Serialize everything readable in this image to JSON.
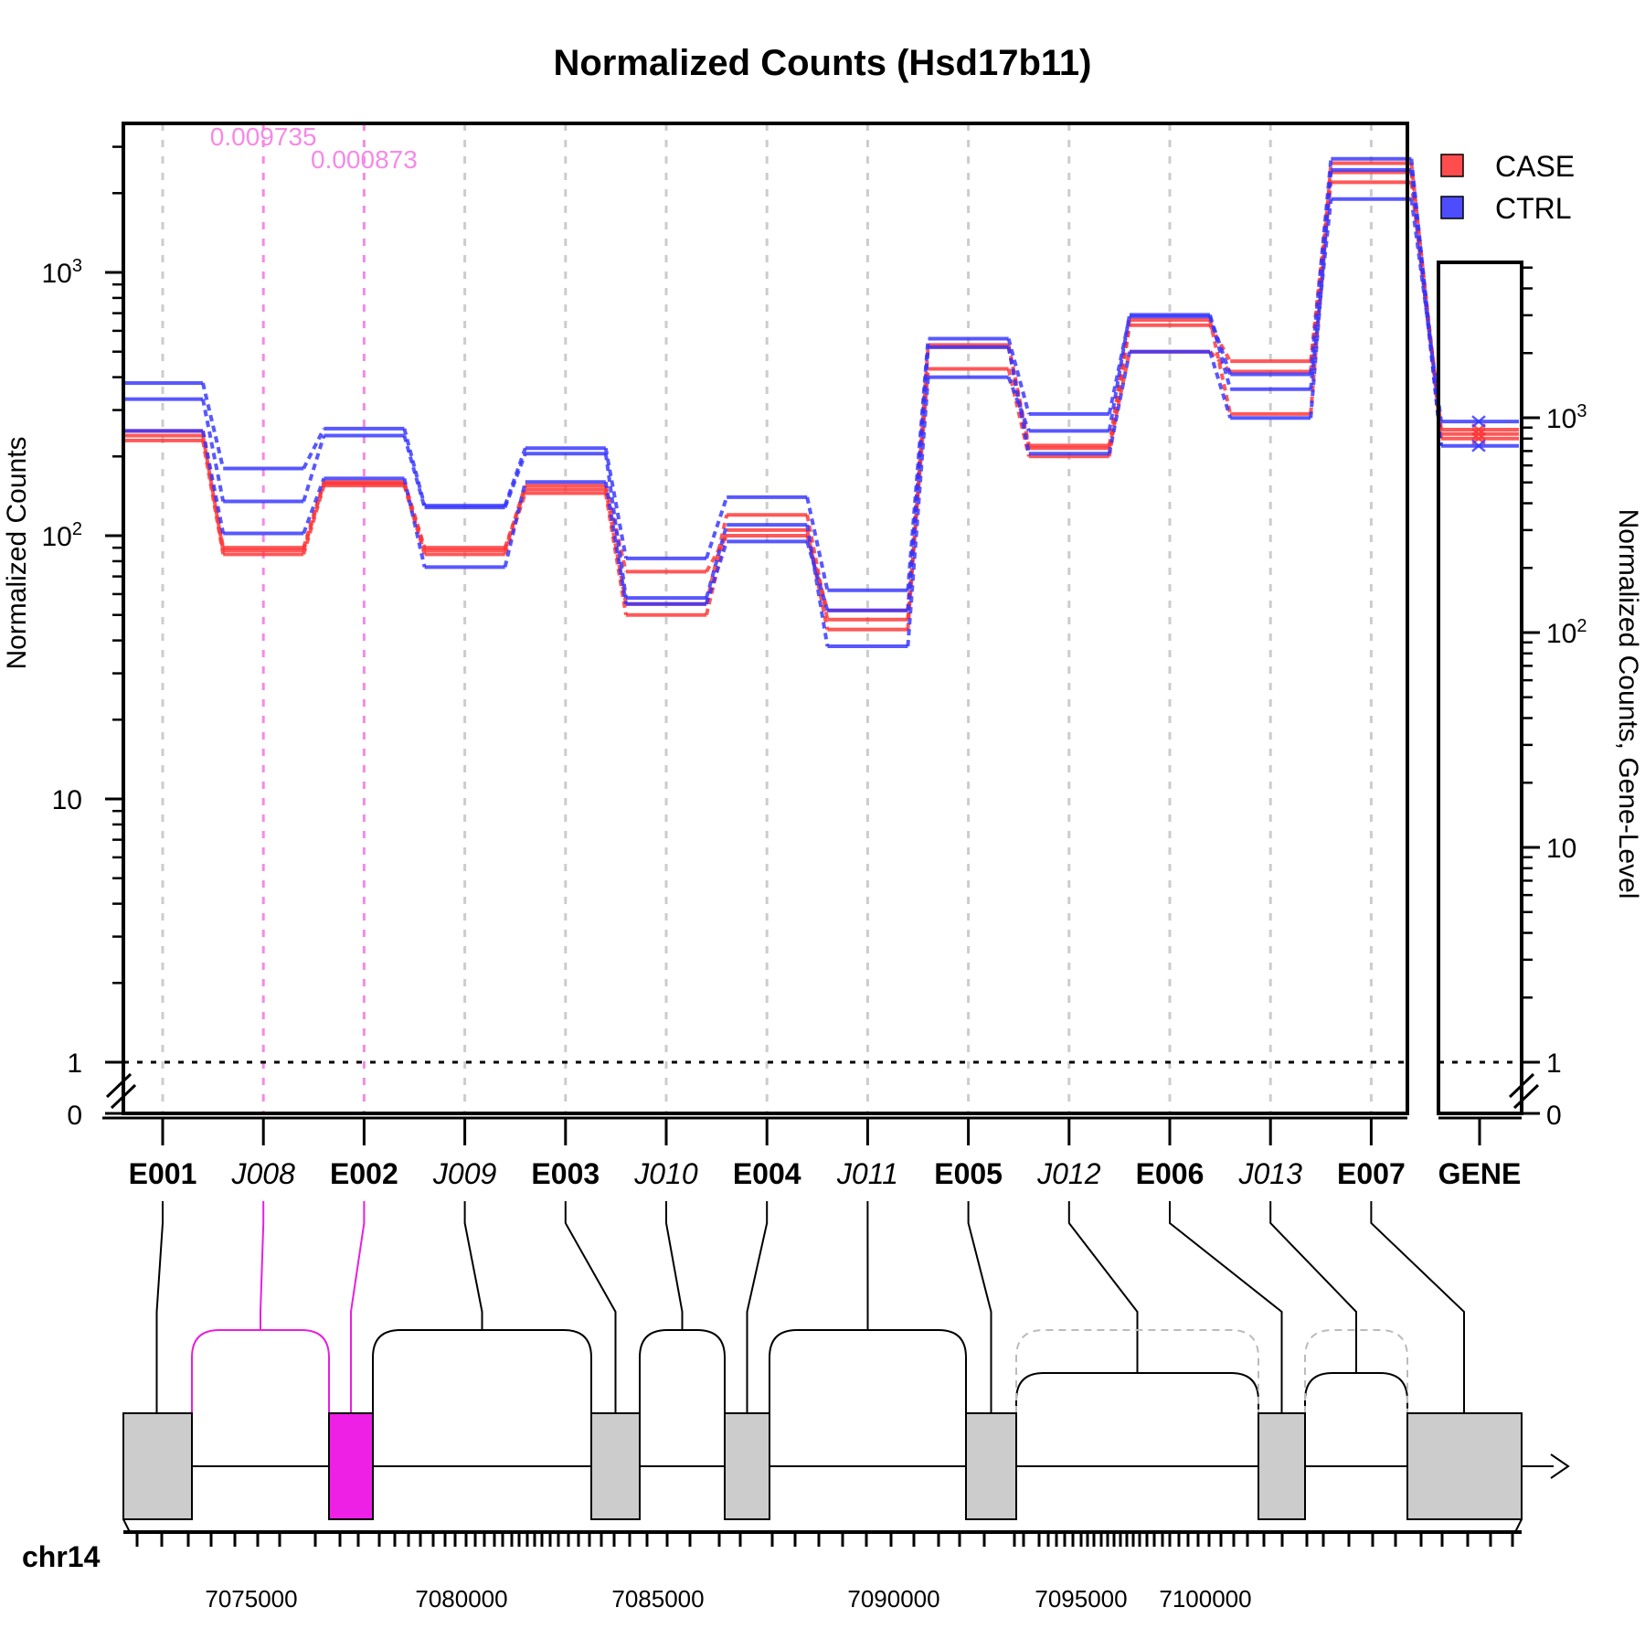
{
  "chart_data": {
    "type": "line",
    "title": "Normalized Counts (Hsd17b11)",
    "ylabel": "Normalized Counts",
    "ylabel_right": "Normalized Counts, Gene-Level",
    "yscale": "log",
    "ytick_labels": [
      "0",
      "1",
      "10",
      "10^2",
      "10^3"
    ],
    "ytick_labels_right": [
      "0",
      "1",
      "10",
      "10^2",
      "10^3"
    ],
    "legend": [
      {
        "name": "CASE",
        "color": "#FF4D4D"
      },
      {
        "name": "CTRL",
        "color": "#4D4DFF"
      }
    ],
    "legend_position": "top-right",
    "features": [
      {
        "id": "E001",
        "kind": "exon"
      },
      {
        "id": "J008",
        "kind": "junction"
      },
      {
        "id": "E002",
        "kind": "exon"
      },
      {
        "id": "J009",
        "kind": "junction"
      },
      {
        "id": "E003",
        "kind": "exon"
      },
      {
        "id": "J010",
        "kind": "junction"
      },
      {
        "id": "E004",
        "kind": "exon"
      },
      {
        "id": "J011",
        "kind": "junction"
      },
      {
        "id": "E005",
        "kind": "exon"
      },
      {
        "id": "J012",
        "kind": "junction"
      },
      {
        "id": "E006",
        "kind": "exon"
      },
      {
        "id": "J013",
        "kind": "junction"
      },
      {
        "id": "E007",
        "kind": "exon"
      }
    ],
    "gene_label": "GENE",
    "pvalues": [
      {
        "feature": "J008",
        "label": "0.009735"
      },
      {
        "feature": "E002",
        "label": "0.000873"
      }
    ],
    "series": [
      {
        "group": "CASE",
        "values": [
          250,
          90,
          160,
          90,
          150,
          55,
          120,
          48,
          430,
          200,
          630,
          460,
          2400
        ]
      },
      {
        "group": "CASE",
        "values": [
          230,
          85,
          155,
          85,
          145,
          50,
          105,
          44,
          520,
          215,
          500,
          420,
          2200
        ]
      },
      {
        "group": "CASE",
        "values": [
          240,
          88,
          158,
          88,
          155,
          73,
          100,
          52,
          530,
          220,
          660,
          290,
          2600
        ]
      },
      {
        "group": "CTRL",
        "values": [
          380,
          180,
          255,
          130,
          215,
          82,
          140,
          62,
          560,
          290,
          680,
          410,
          2700
        ]
      },
      {
        "group": "CTRL",
        "values": [
          330,
          135,
          240,
          128,
          205,
          58,
          110,
          38,
          400,
          250,
          690,
          360,
          1900
        ]
      },
      {
        "group": "CTRL",
        "values": [
          250,
          102,
          165,
          76,
          160,
          55,
          95,
          52,
          520,
          205,
          500,
          280,
          2450
        ]
      }
    ],
    "gene_level": {
      "CASE": [
        880,
        840,
        800
      ],
      "CTRL": [
        960,
        740
      ]
    },
    "genome": {
      "chromosome": "chr14",
      "coord_labels": [
        "7075000",
        "7080000",
        "7085000",
        "7090000",
        "7095000",
        "7100000"
      ],
      "highlighted_features": [
        "J008",
        "E002"
      ],
      "faded_junctions": [
        "J012",
        "J013"
      ],
      "strand": "+"
    }
  }
}
